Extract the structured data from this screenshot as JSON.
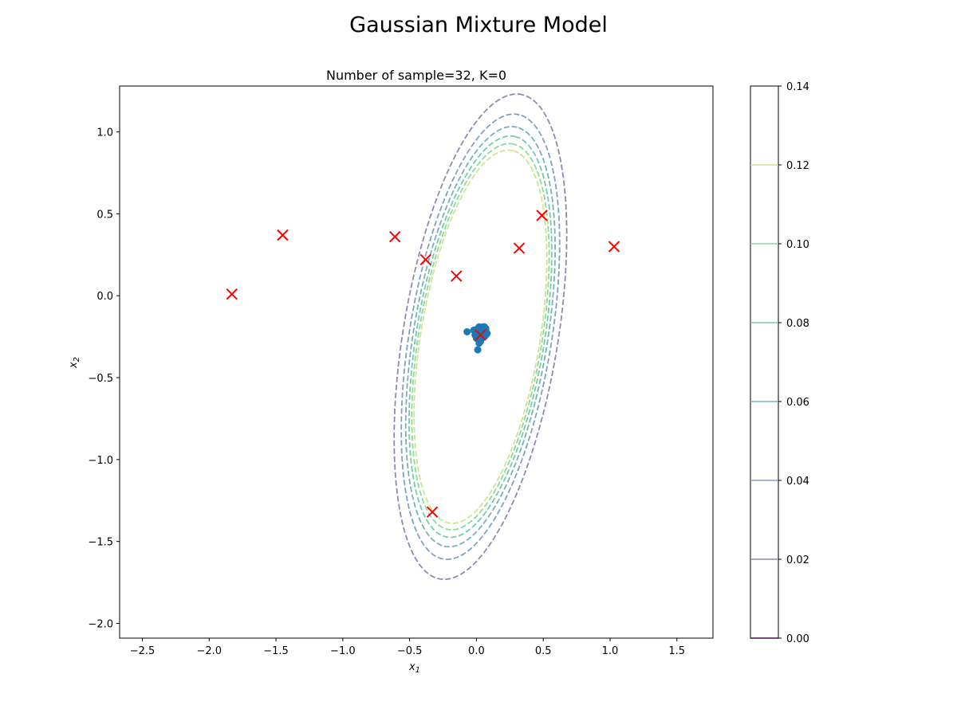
{
  "figure": {
    "suptitle": "Gaussian Mixture Model"
  },
  "chart_data": {
    "type": "scatter",
    "title": "Number of sample=32, K=0",
    "xlabel": "x1",
    "ylabel": "x2",
    "xlim": [
      -2.67,
      1.77
    ],
    "ylim": [
      -2.09,
      1.28
    ],
    "xticks": [
      "−2.5",
      "−2.0",
      "−1.5",
      "−1.0",
      "−0.5",
      "0.0",
      "0.5",
      "1.0",
      "1.5"
    ],
    "xtick_values": [
      -2.5,
      -2.0,
      -1.5,
      -1.0,
      -0.5,
      0.0,
      0.5,
      1.0,
      1.5
    ],
    "yticks": [
      "−2.0",
      "−1.5",
      "−1.0",
      "−0.5",
      "0.0",
      "0.5",
      "1.0"
    ],
    "ytick_values": [
      -2.0,
      -1.5,
      -1.0,
      -0.5,
      0.0,
      0.5,
      1.0
    ],
    "grid": false,
    "samples": {
      "color": "#1f77b4",
      "points": [
        [
          0.04,
          -0.2
        ],
        [
          0.06,
          -0.22
        ],
        [
          0.02,
          -0.21
        ],
        [
          0.05,
          -0.24
        ],
        [
          0.07,
          -0.21
        ],
        [
          0.03,
          -0.23
        ],
        [
          0.0,
          -0.22
        ],
        [
          0.04,
          -0.26
        ],
        [
          0.01,
          -0.25
        ],
        [
          0.08,
          -0.23
        ],
        [
          0.05,
          -0.19
        ],
        [
          -0.01,
          -0.24
        ],
        [
          0.03,
          -0.28
        ],
        [
          -0.07,
          -0.22
        ],
        [
          0.01,
          -0.33
        ],
        [
          0.06,
          -0.25
        ],
        [
          0.02,
          -0.19
        ],
        [
          0.04,
          -0.23
        ],
        [
          0.07,
          -0.2
        ],
        [
          -0.02,
          -0.21
        ],
        [
          0.05,
          -0.21
        ],
        [
          0.03,
          -0.2
        ],
        [
          0.02,
          -0.24
        ],
        [
          0.06,
          -0.19
        ],
        [
          0.0,
          -0.26
        ],
        [
          0.04,
          -0.22
        ],
        [
          0.03,
          -0.25
        ],
        [
          0.05,
          -0.23
        ],
        [
          0.01,
          -0.2
        ],
        [
          0.07,
          -0.24
        ],
        [
          0.02,
          -0.29
        ],
        [
          0.04,
          -0.24
        ]
      ]
    },
    "centers": {
      "color": "#ff0000",
      "marker": "x",
      "points": [
        [
          -1.83,
          0.01
        ],
        [
          -1.45,
          0.37
        ],
        [
          -0.61,
          0.36
        ],
        [
          -0.38,
          0.22
        ],
        [
          -0.15,
          0.12
        ],
        [
          0.32,
          0.29
        ],
        [
          0.49,
          0.49
        ],
        [
          1.03,
          0.3
        ],
        [
          -0.33,
          -1.32
        ],
        [
          0.03,
          -0.24
        ]
      ]
    },
    "contours": {
      "style": "dashed",
      "center": [
        0.03,
        -0.25
      ],
      "sx": 0.218,
      "sy": 0.5,
      "rho": 0.42,
      "levels": [
        0.02,
        0.04,
        0.06,
        0.08,
        0.1,
        0.12
      ],
      "colors": [
        "#7a77a3",
        "#6f8fb5",
        "#5fa6a8",
        "#5cc39a",
        "#7ad48c",
        "#c4e27a"
      ]
    },
    "colorbar": {
      "range": [
        0.0,
        0.14
      ],
      "ticks": [
        "0.00",
        "0.02",
        "0.04",
        "0.06",
        "0.08",
        "0.10",
        "0.12",
        "0.14"
      ],
      "tick_values": [
        0.0,
        0.02,
        0.04,
        0.06,
        0.08,
        0.1,
        0.12,
        0.14
      ],
      "line_levels": [
        0.0,
        0.02,
        0.04,
        0.06,
        0.08,
        0.1,
        0.12
      ],
      "line_colors": [
        "#440154",
        "#7a77a3",
        "#6f8fb5",
        "#5fa6a8",
        "#5cc39a",
        "#7ad48c",
        "#c4e27a"
      ]
    }
  }
}
